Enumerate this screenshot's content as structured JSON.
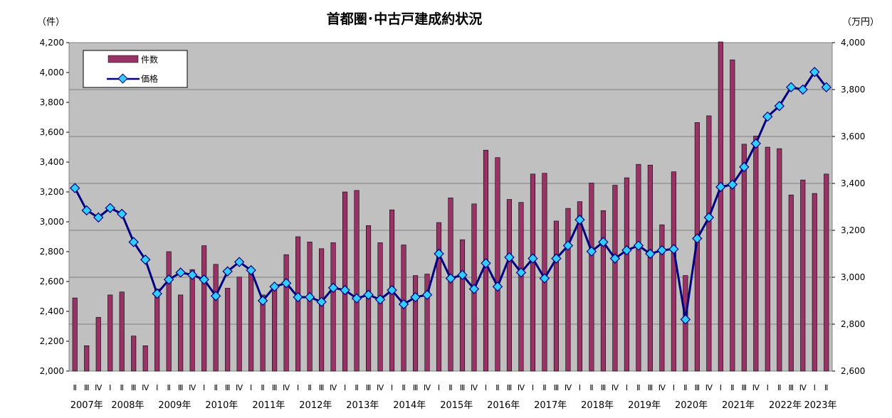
{
  "chart_data": {
    "type": "bar+line",
    "title": "首都圏･中古戸建成約状況",
    "left_unit": "（件）",
    "right_unit": "（万円）",
    "left_axis": {
      "min": 2000,
      "max": 4200,
      "step": 200,
      "tick_labels": [
        "2,000",
        "2,200",
        "2,400",
        "2,600",
        "2,800",
        "3,000",
        "3,200",
        "3,400",
        "3,600",
        "3,800",
        "4,000",
        "4,200"
      ]
    },
    "right_axis": {
      "min": 2600,
      "max": 4000,
      "step": 200,
      "tick_labels": [
        "2,600",
        "2,800",
        "3,000",
        "3,200",
        "3,400",
        "3,600",
        "3,800",
        "4,000"
      ]
    },
    "legend": {
      "position": "top-left",
      "bar_label": "件数",
      "line_label": "価格"
    },
    "grid": true,
    "colors": {
      "bar": "#993366",
      "line": "#000080",
      "marker": "#33CCFF",
      "plot_bg": "#C0C0C0"
    },
    "quarters": [
      "Ⅱ",
      "Ⅲ",
      "Ⅳ",
      "Ⅰ",
      "Ⅱ",
      "Ⅲ",
      "Ⅳ",
      "Ⅰ",
      "Ⅱ",
      "Ⅲ",
      "Ⅳ",
      "Ⅰ",
      "Ⅱ",
      "Ⅲ",
      "Ⅳ",
      "Ⅰ",
      "Ⅱ",
      "Ⅲ",
      "Ⅳ",
      "Ⅰ",
      "Ⅱ",
      "Ⅲ",
      "Ⅳ",
      "Ⅰ",
      "Ⅱ",
      "Ⅲ",
      "Ⅳ",
      "Ⅰ",
      "Ⅱ",
      "Ⅲ",
      "Ⅳ",
      "Ⅰ",
      "Ⅱ",
      "Ⅲ",
      "Ⅳ",
      "Ⅰ",
      "Ⅱ",
      "Ⅲ",
      "Ⅳ",
      "Ⅰ",
      "Ⅱ",
      "Ⅲ",
      "Ⅳ",
      "Ⅰ",
      "Ⅱ",
      "Ⅲ",
      "Ⅳ",
      "Ⅰ",
      "Ⅱ",
      "Ⅲ",
      "Ⅳ",
      "Ⅰ",
      "Ⅱ",
      "Ⅲ",
      "Ⅳ",
      "Ⅰ",
      "Ⅱ",
      "Ⅲ",
      "Ⅳ",
      "Ⅰ",
      "Ⅱ",
      "Ⅲ",
      "Ⅳ",
      "Ⅰ",
      "Ⅱ"
    ],
    "years": [
      {
        "label": "2007年",
        "start": 0,
        "count": 3
      },
      {
        "label": "2008年",
        "start": 3,
        "count": 4
      },
      {
        "label": "2009年",
        "start": 7,
        "count": 4
      },
      {
        "label": "2010年",
        "start": 11,
        "count": 4
      },
      {
        "label": "2011年",
        "start": 15,
        "count": 4
      },
      {
        "label": "2012年",
        "start": 19,
        "count": 4
      },
      {
        "label": "2013年",
        "start": 23,
        "count": 4
      },
      {
        "label": "2014年",
        "start": 27,
        "count": 4
      },
      {
        "label": "2015年",
        "start": 31,
        "count": 4
      },
      {
        "label": "2016年",
        "start": 35,
        "count": 4
      },
      {
        "label": "2017年",
        "start": 39,
        "count": 4
      },
      {
        "label": "2018年",
        "start": 43,
        "count": 4
      },
      {
        "label": "2019年",
        "start": 47,
        "count": 4
      },
      {
        "label": "2020年",
        "start": 51,
        "count": 4
      },
      {
        "label": "2021年",
        "start": 55,
        "count": 4
      },
      {
        "label": "2022年",
        "start": 59,
        "count": 4
      },
      {
        "label": "2023年",
        "start": 63,
        "count": 2
      }
    ],
    "series": [
      {
        "name": "件数",
        "type": "bar",
        "axis": "left",
        "values": [
          2490,
          2170,
          2360,
          2510,
          2530,
          2235,
          2170,
          2550,
          2800,
          2510,
          2680,
          2840,
          2715,
          2555,
          2630,
          2690,
          2510,
          2560,
          2780,
          2900,
          2865,
          2820,
          2860,
          3200,
          3210,
          2975,
          2860,
          3080,
          2845,
          2640,
          2650,
          2995,
          3160,
          2880,
          3120,
          3480,
          3430,
          3150,
          3130,
          3320,
          3325,
          3005,
          3090,
          3135,
          3260,
          3075,
          3245,
          3295,
          3385,
          3380,
          2980,
          3335,
          2640,
          3665,
          3710,
          4205,
          4085,
          3520,
          3575,
          3500,
          3490,
          3180,
          3280,
          3190,
          3320
        ]
      },
      {
        "name": "価格",
        "type": "line",
        "axis": "right",
        "values": [
          3380,
          3285,
          3255,
          3295,
          3270,
          3150,
          3075,
          2930,
          2990,
          3020,
          3010,
          2990,
          2920,
          3025,
          3065,
          3030,
          2900,
          2960,
          2975,
          2915,
          2915,
          2895,
          2955,
          2945,
          2910,
          2925,
          2905,
          2945,
          2885,
          2915,
          2925,
          3100,
          2995,
          3010,
          2950,
          3060,
          2960,
          3085,
          3020,
          3080,
          2995,
          3080,
          3135,
          3245,
          3110,
          3150,
          3080,
          3115,
          3135,
          3100,
          3115,
          3120,
          2820,
          3165,
          3255,
          3385,
          3395,
          3470,
          3570,
          3685,
          3730,
          3810,
          3800,
          3875,
          3810
        ]
      }
    ]
  }
}
